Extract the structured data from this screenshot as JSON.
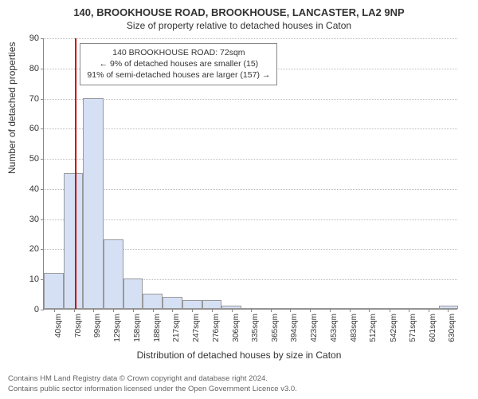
{
  "titles": {
    "line1": "140, BROOKHOUSE ROAD, BROOKHOUSE, LANCASTER, LA2 9NP",
    "line2": "Size of property relative to detached houses in Caton"
  },
  "axes": {
    "ylabel": "Number of detached properties",
    "xlabel": "Distribution of detached houses by size in Caton",
    "ylim_max": 90,
    "yticks": [
      0,
      10,
      20,
      30,
      40,
      50,
      60,
      70,
      80,
      90
    ],
    "xticks_labels": [
      "40sqm",
      "70sqm",
      "99sqm",
      "129sqm",
      "158sqm",
      "188sqm",
      "217sqm",
      "247sqm",
      "276sqm",
      "306sqm",
      "335sqm",
      "365sqm",
      "394sqm",
      "423sqm",
      "453sqm",
      "483sqm",
      "512sqm",
      "542sqm",
      "571sqm",
      "601sqm",
      "630sqm"
    ],
    "x_min": 25,
    "x_max": 645
  },
  "bars": {
    "fill": "#d6e0f5",
    "border": "#999",
    "bin_edges": [
      25,
      55,
      84,
      114,
      144,
      173,
      203,
      232,
      262,
      291,
      321,
      350,
      380,
      409,
      439,
      468,
      498,
      527,
      557,
      586,
      616,
      645
    ],
    "counts": [
      12,
      45,
      70,
      23,
      10,
      5,
      4,
      3,
      3,
      1,
      0,
      0,
      0,
      0,
      0,
      0,
      0,
      0,
      0,
      0,
      1
    ]
  },
  "reference": {
    "x_value": 72,
    "color": "#cc0000"
  },
  "annotation": {
    "line1": "140 BROOKHOUSE ROAD: 72sqm",
    "line2": "← 9% of detached houses are smaller (15)",
    "line3": "91% of semi-detached houses are larger (157) →",
    "border": "#888"
  },
  "grid": {
    "color": "#bbb"
  },
  "background": "#ffffff",
  "footer": {
    "line1": "Contains HM Land Registry data © Crown copyright and database right 2024.",
    "line2": "Contains public sector information licensed under the Open Government Licence v3.0."
  }
}
